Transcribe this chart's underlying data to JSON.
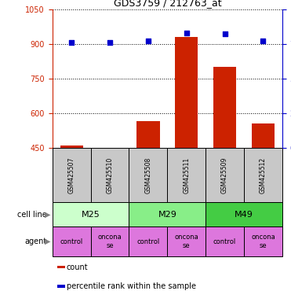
{
  "title": "GDS3759 / 212763_at",
  "samples": [
    "GSM425507",
    "GSM425510",
    "GSM425508",
    "GSM425511",
    "GSM425509",
    "GSM425512"
  ],
  "count_values": [
    462,
    451,
    565,
    930,
    800,
    555
  ],
  "percentile_values": [
    76,
    76,
    77,
    83,
    82,
    77
  ],
  "ylim_left": [
    450,
    1050
  ],
  "ylim_right": [
    0,
    100
  ],
  "yticks_left": [
    450,
    600,
    750,
    900,
    1050
  ],
  "yticks_right": [
    0,
    25,
    50,
    75,
    100
  ],
  "cell_lines": [
    {
      "label": "M25",
      "span": [
        0,
        2
      ],
      "color": "#ccffcc"
    },
    {
      "label": "M29",
      "span": [
        2,
        4
      ],
      "color": "#88ee88"
    },
    {
      "label": "M49",
      "span": [
        4,
        6
      ],
      "color": "#44cc44"
    }
  ],
  "agents": [
    {
      "label": "control",
      "span": [
        0,
        1
      ]
    },
    {
      "label": "oncona\nse",
      "span": [
        1,
        2
      ]
    },
    {
      "label": "control",
      "span": [
        2,
        3
      ]
    },
    {
      "label": "oncona\nse",
      "span": [
        3,
        4
      ]
    },
    {
      "label": "control",
      "span": [
        4,
        5
      ]
    },
    {
      "label": "oncona\nse",
      "span": [
        5,
        6
      ]
    }
  ],
  "bar_color": "#cc2200",
  "dot_color": "#0000cc",
  "bar_width": 0.6,
  "left_color": "#cc2200",
  "right_color": "#0000cc",
  "sample_box_color": "#c8c8c8",
  "agent_color": "#dd77dd",
  "legend_items": [
    {
      "color": "#cc2200",
      "label": "count"
    },
    {
      "color": "#0000cc",
      "label": "percentile rank within the sample"
    }
  ]
}
